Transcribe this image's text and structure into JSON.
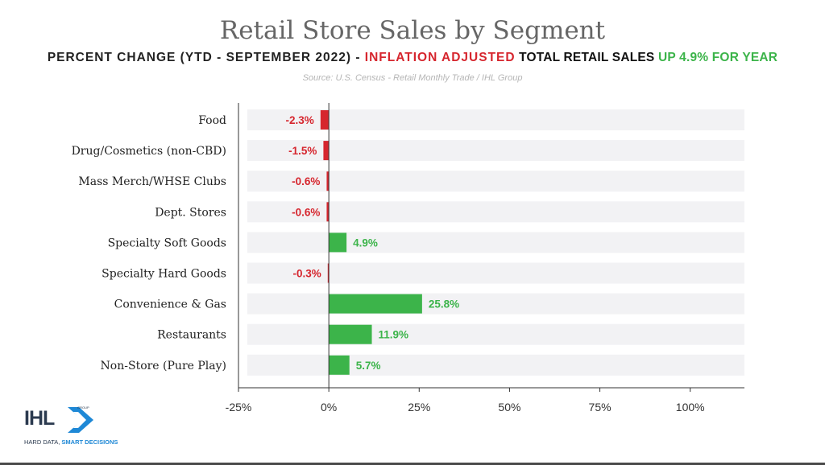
{
  "chart_data": {
    "type": "bar",
    "orientation": "horizontal",
    "title": "Retail Store Sales by Segment",
    "subtitle_parts": [
      "PERCENT CHANGE (YTD - SEPTEMBER 2022)",
      " - ",
      "INFLATION ADJUSTED",
      " TOTAL RETAIL SALES",
      " UP 4.9% FOR YEAR"
    ],
    "source": "Source: U.S. Census - Retail Monthly Trade / IHL Group",
    "categories": [
      "Food",
      "Drug/Cosmetics (non-CBD)",
      "Mass Merch/WHSE Clubs",
      "Dept. Stores",
      "Specialty Soft Goods",
      "Specialty Hard Goods",
      "Convenience & Gas",
      "Restaurants",
      "Non-Store (Pure Play)"
    ],
    "values": [
      -2.3,
      -1.5,
      -0.6,
      -0.6,
      4.9,
      -0.3,
      25.8,
      11.9,
      5.7
    ],
    "value_labels": [
      "-2.3%",
      "-1.5%",
      "-0.6%",
      "-0.6%",
      "4.9%",
      "-0.3%",
      "25.8%",
      "11.9%",
      "5.7%"
    ],
    "xlim": [
      -25,
      115
    ],
    "xticks": [
      -25,
      0,
      25,
      50,
      75,
      100
    ],
    "xtick_labels": [
      "-25%",
      "0%",
      "25%",
      "50%",
      "75%",
      "100%"
    ],
    "colors": {
      "negative": "#d6262e",
      "positive": "#3cb44a",
      "track": "#f2f2f4",
      "axis": "#333333"
    },
    "grid": false,
    "legend": "none"
  },
  "logo": {
    "text": "IHL",
    "group": "GROUP",
    "tagline_part1": "HARD DATA, ",
    "tagline_part2": "SMART DECISIONS",
    "icon": "chevron-arrow-icon",
    "colors": {
      "navy": "#2b3a4f",
      "blue": "#1e88d6"
    }
  }
}
